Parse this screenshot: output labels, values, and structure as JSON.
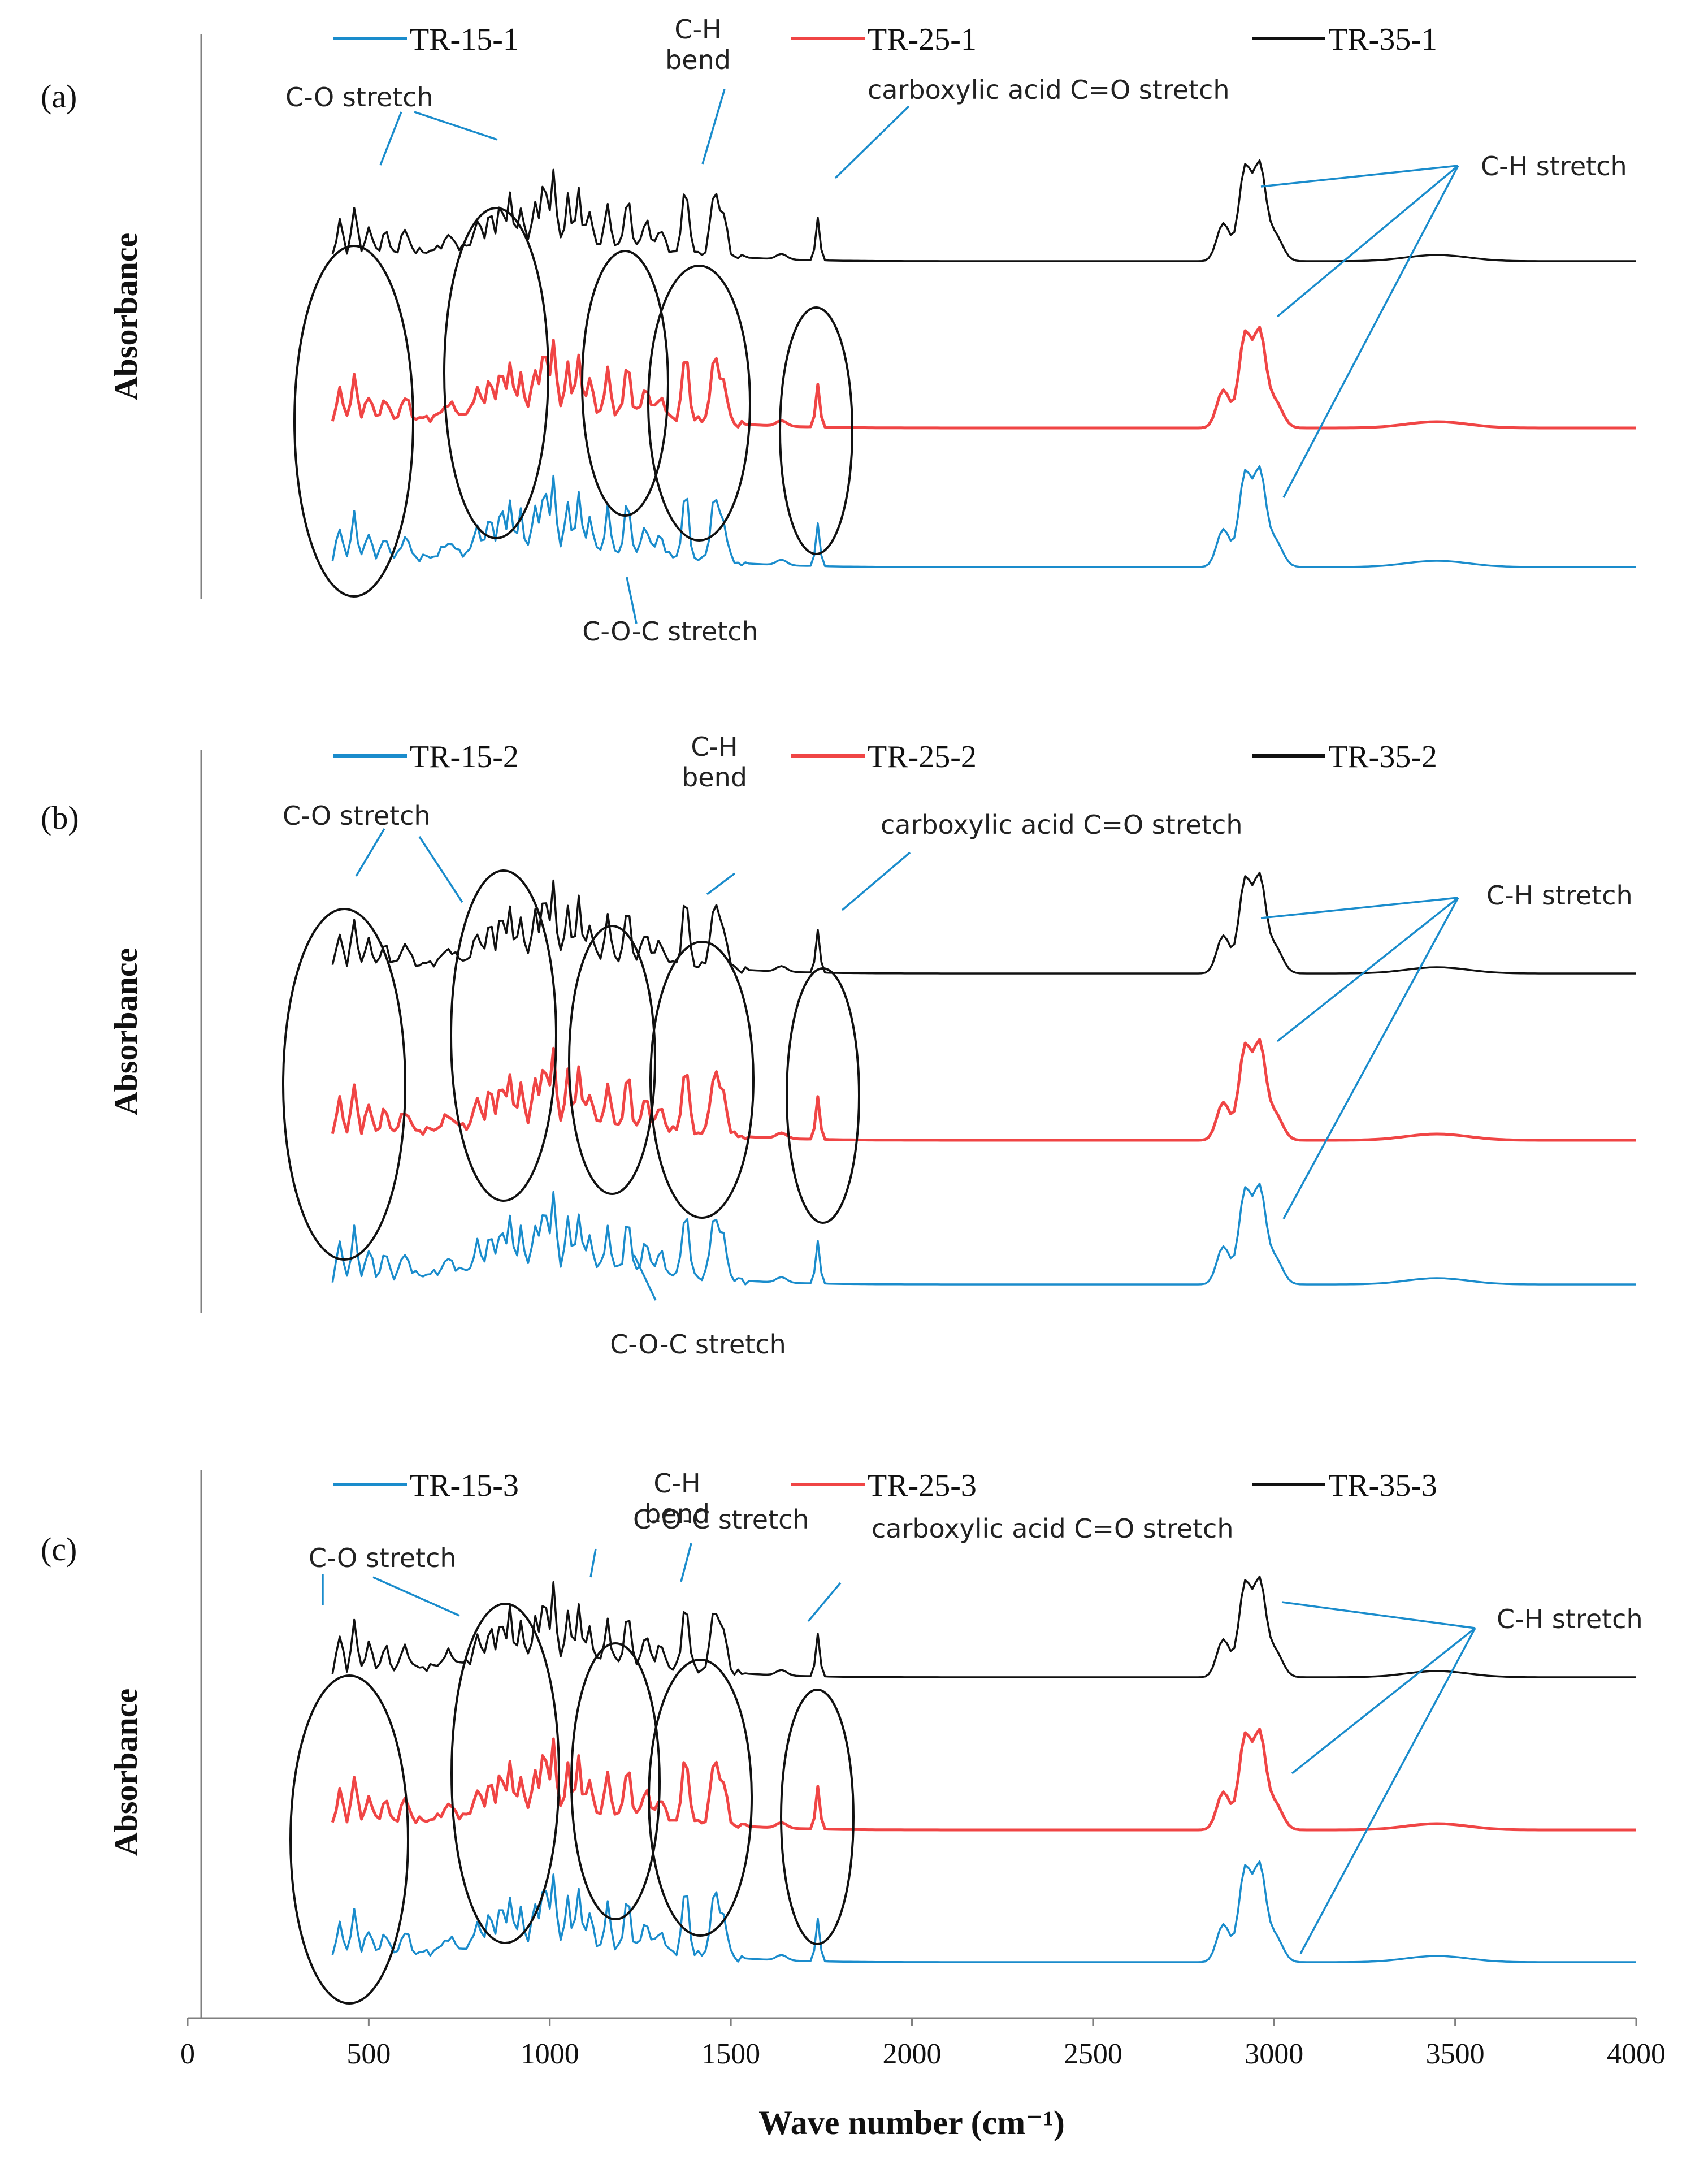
{
  "figure": {
    "xaxis": {
      "label": "Wave number (cm⁻¹)",
      "ticks": [
        "0",
        "500",
        "1000",
        "1500",
        "2000",
        "2500",
        "3000",
        "3500",
        "4000"
      ],
      "xlim": [
        0,
        4000
      ]
    },
    "ylabel": "Absorbance"
  },
  "chart_data": [
    {
      "panel": "(a)",
      "type": "line",
      "xlabel": "Wave number (cm⁻¹)",
      "ylabel": "Absorbance",
      "xlim": [
        0,
        4000
      ],
      "series": [
        {
          "name": "TR-15-1",
          "color": "#1a8ccc",
          "offset": 0
        },
        {
          "name": "TR-25-1",
          "color": "#f04545",
          "offset": 1
        },
        {
          "name": "TR-35-1",
          "color": "#111111",
          "offset": 2
        }
      ],
      "annotations": {
        "co": "C-O stretch",
        "coc": "C-O-C stretch",
        "chbend": "C-H\nbend",
        "acid": "carboxylic acid C=O stretch",
        "chstretch": "C-H stretch"
      }
    },
    {
      "panel": "(b)",
      "type": "line",
      "xlabel": "Wave number (cm⁻¹)",
      "ylabel": "Absorbance",
      "xlim": [
        0,
        4000
      ],
      "series": [
        {
          "name": "TR-15-2",
          "color": "#1a8ccc",
          "offset": 0
        },
        {
          "name": "TR-25-2",
          "color": "#f04545",
          "offset": 1
        },
        {
          "name": "TR-35-2",
          "color": "#111111",
          "offset": 2
        }
      ],
      "annotations": {
        "co": "C-O stretch",
        "coc": "C-O-C stretch",
        "chbend": "C-H\nbend",
        "acid": "carboxylic acid C=O stretch",
        "chstretch": "C-H stretch"
      }
    },
    {
      "panel": "(c)",
      "type": "line",
      "xlabel": "Wave number (cm⁻¹)",
      "ylabel": "Absorbance",
      "xlim": [
        0,
        4000
      ],
      "series": [
        {
          "name": "TR-15-3",
          "color": "#1a8ccc",
          "offset": 0
        },
        {
          "name": "TR-25-3",
          "color": "#f04545",
          "offset": 1
        },
        {
          "name": "TR-35-3",
          "color": "#111111",
          "offset": 2
        }
      ],
      "annotations": {
        "co": "C-O stretch",
        "coc": "C-O-C stretch",
        "chbend": "C-H\nbend",
        "acid": "carboxylic acid C=O stretch",
        "chstretch": "C-H stretch"
      }
    }
  ]
}
